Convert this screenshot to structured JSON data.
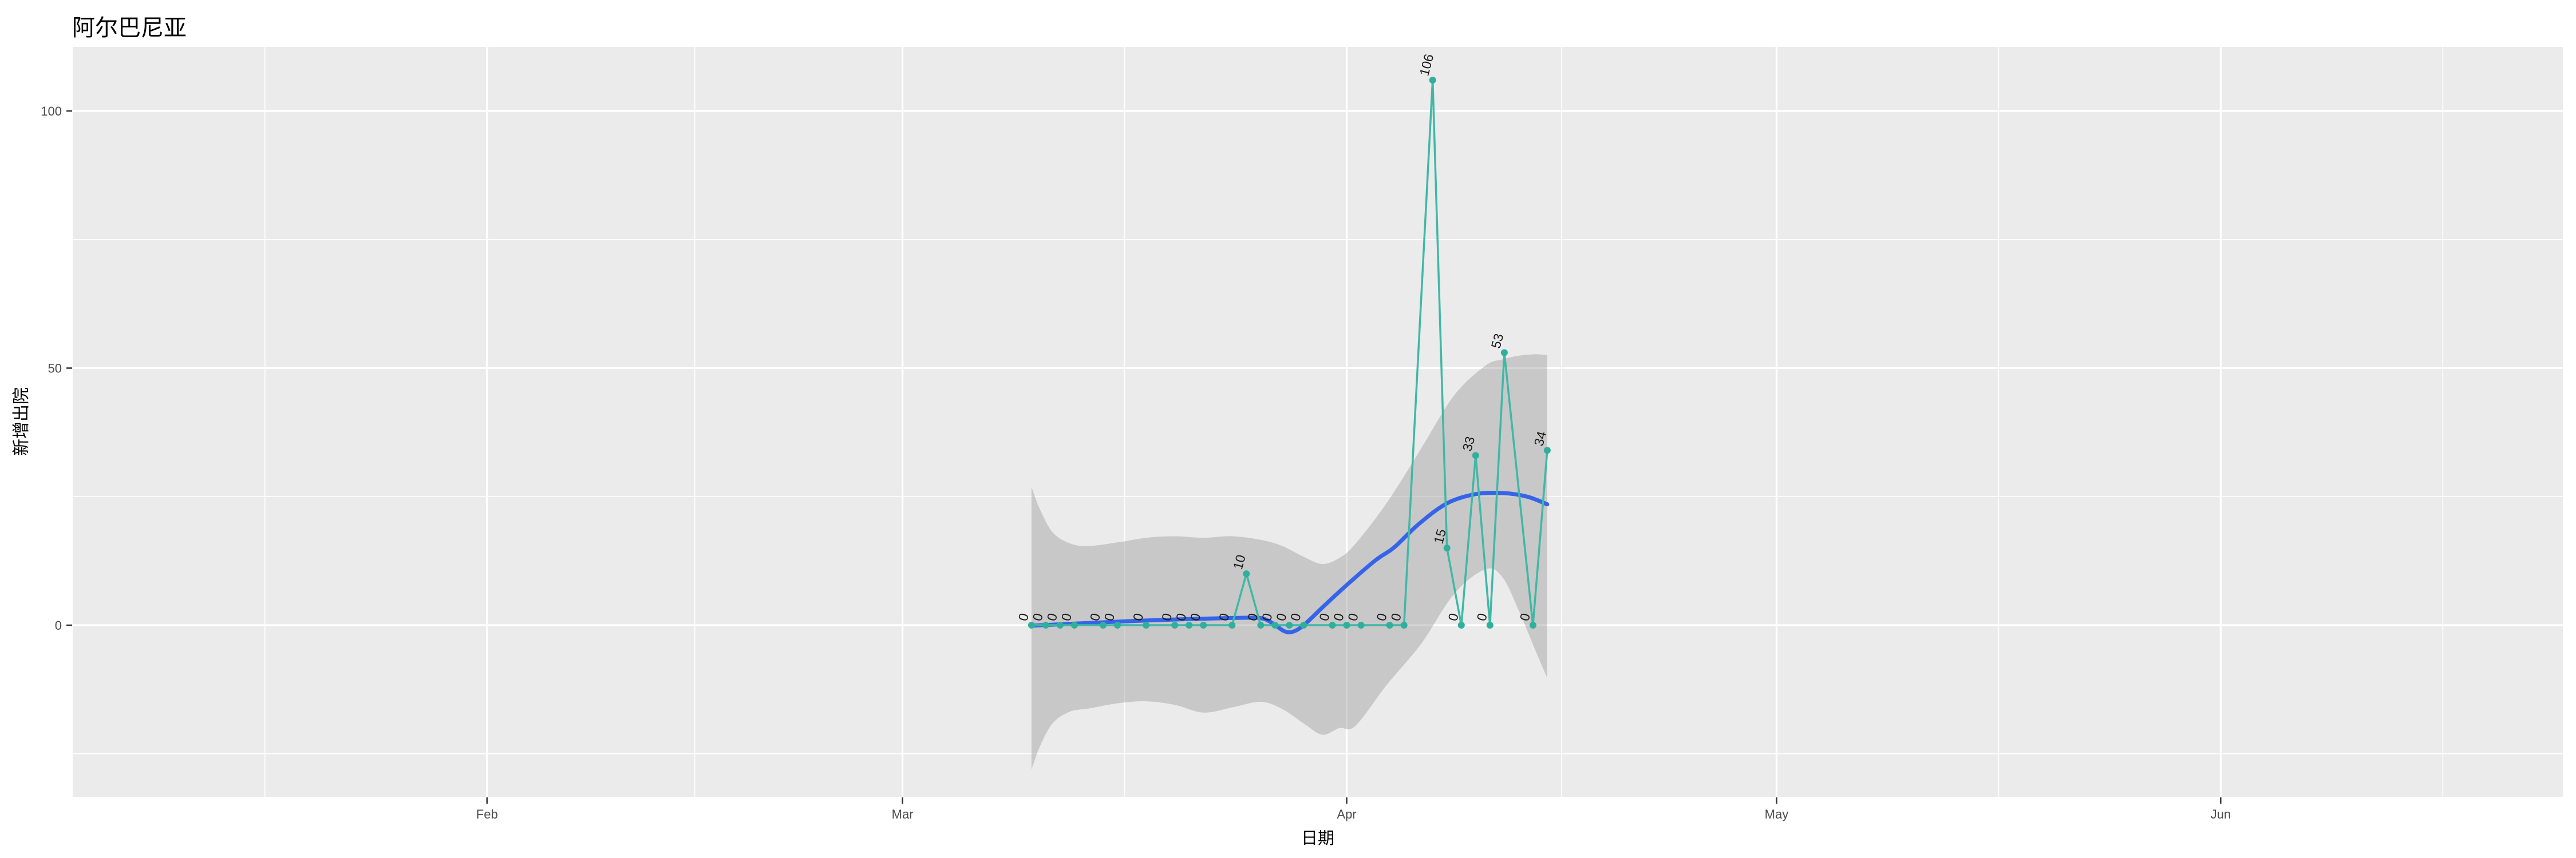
{
  "chart_data": {
    "type": "line",
    "title": "阿尔巴尼亚",
    "xlabel": "日期",
    "ylabel": "新增出院",
    "legend": "none",
    "grid": "on",
    "x_axis": {
      "ticks": [
        {
          "label": "Feb",
          "date": "2020-02-01"
        },
        {
          "label": "Mar",
          "date": "2020-03-01"
        },
        {
          "label": "Apr",
          "date": "2020-04-01"
        },
        {
          "label": "May",
          "date": "2020-05-01"
        },
        {
          "label": "Jun",
          "date": "2020-06-01"
        }
      ],
      "minor_day_offsets": [
        -44.5,
        -14.5,
        15.5,
        46,
        76.5,
        107.5
      ],
      "range_day_offsets": [
        -57.9,
        115.9
      ]
    },
    "y_axis": {
      "ticks": [
        {
          "label": "0",
          "value": 0
        },
        {
          "label": "50",
          "value": 50
        },
        {
          "label": "100",
          "value": 100
        }
      ],
      "minor_values": [
        -25,
        25,
        75
      ],
      "range": [
        -33.4,
        112.5
      ]
    },
    "series": [
      {
        "name": "daily-new-discharges",
        "points": [
          {
            "date": "2020-03-10",
            "value": 0
          },
          {
            "date": "2020-03-11",
            "value": 0
          },
          {
            "date": "2020-03-12",
            "value": 0
          },
          {
            "date": "2020-03-13",
            "value": 0
          },
          {
            "date": "2020-03-15",
            "value": 0
          },
          {
            "date": "2020-03-16",
            "value": 0
          },
          {
            "date": "2020-03-18",
            "value": 0
          },
          {
            "date": "2020-03-20",
            "value": 0
          },
          {
            "date": "2020-03-21",
            "value": 0
          },
          {
            "date": "2020-03-22",
            "value": 0
          },
          {
            "date": "2020-03-24",
            "value": 0
          },
          {
            "date": "2020-03-25",
            "value": 10
          },
          {
            "date": "2020-03-26",
            "value": 0
          },
          {
            "date": "2020-03-27",
            "value": 0
          },
          {
            "date": "2020-03-28",
            "value": 0
          },
          {
            "date": "2020-03-29",
            "value": 0
          },
          {
            "date": "2020-03-31",
            "value": 0
          },
          {
            "date": "2020-04-01",
            "value": 0
          },
          {
            "date": "2020-04-02",
            "value": 0
          },
          {
            "date": "2020-04-04",
            "value": 0
          },
          {
            "date": "2020-04-05",
            "value": 0
          },
          {
            "date": "2020-04-07",
            "value": 106
          },
          {
            "date": "2020-04-08",
            "value": 15
          },
          {
            "date": "2020-04-09",
            "value": 0
          },
          {
            "date": "2020-04-10",
            "value": 33
          },
          {
            "date": "2020-04-11",
            "value": 0
          },
          {
            "date": "2020-04-12",
            "value": 53
          },
          {
            "date": "2020-04-14",
            "value": 0
          },
          {
            "date": "2020-04-15",
            "value": 34
          }
        ]
      },
      {
        "name": "loess-smooth-trend",
        "points_day_value": [
          [
            9,
            -0.1
          ],
          [
            12,
            0.3
          ],
          [
            16,
            0.8
          ],
          [
            20,
            1.2
          ],
          [
            23,
            1.4
          ],
          [
            24.9,
            1.4
          ],
          [
            25.7,
            0.6
          ],
          [
            26.6,
            -1.1
          ],
          [
            27.2,
            -1.3
          ],
          [
            28,
            0
          ],
          [
            29.4,
            3.7
          ],
          [
            31,
            7.8
          ],
          [
            33,
            12.6
          ],
          [
            34.3,
            15.1
          ],
          [
            36,
            19.6
          ],
          [
            38,
            23.7
          ],
          [
            40,
            25.5
          ],
          [
            41.9,
            25.7
          ],
          [
            43.6,
            25
          ],
          [
            45,
            23.5
          ]
        ]
      },
      {
        "name": "confidence-band",
        "points_day_top_bottom": [
          [
            9,
            26.9,
            -28.1
          ],
          [
            9.6,
            22.5,
            -23.5
          ],
          [
            10.5,
            18,
            -19
          ],
          [
            11.7,
            15.9,
            -16.8
          ],
          [
            13,
            15.4,
            -16.2
          ],
          [
            15,
            16.1,
            -15.2
          ],
          [
            17,
            17,
            -14.8
          ],
          [
            19,
            17.3,
            -15.5
          ],
          [
            21,
            17,
            -17
          ],
          [
            23,
            17.3,
            -16
          ],
          [
            25,
            16.6,
            -14.9
          ],
          [
            26.5,
            15.4,
            -16.3
          ],
          [
            28,
            13.3,
            -19.1
          ],
          [
            29.3,
            11.9,
            -21.3
          ],
          [
            30.5,
            13.1,
            -20
          ],
          [
            31.6,
            15.8,
            -19.6
          ],
          [
            33.8,
            23.8,
            -11.6
          ],
          [
            36.2,
            34.4,
            -3.6
          ],
          [
            38.5,
            44.7,
            6.1
          ],
          [
            40.7,
            50.5,
            10.9
          ],
          [
            41.9,
            51.7,
            9.2
          ],
          [
            43,
            52.4,
            2.9
          ],
          [
            44.2,
            52.7,
            -5.1
          ],
          [
            45,
            52.5,
            -10.3
          ]
        ]
      }
    ],
    "point_labels_shown": true,
    "colors": {
      "panel_bg": "#EBEBEB",
      "gridline": "#FFFFFF",
      "band_fill": "#999999",
      "series_line": "#3FB8A5",
      "series_point": "#2FAF9C",
      "smooth_line": "#3564E8",
      "point_label_text": "#1A1A1A",
      "axis_tick_text": "#4D4D4D",
      "tick_mark": "#333333",
      "title_text": "#000000"
    }
  }
}
